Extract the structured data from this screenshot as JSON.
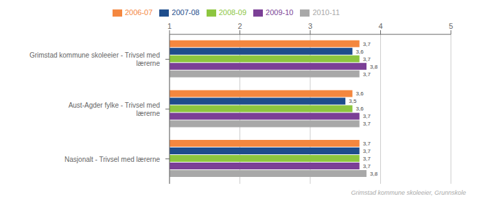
{
  "chart_data": {
    "type": "bar",
    "orientation": "horizontal",
    "categories": [
      "Grimstad kommune skoleeier - Trivsel med\nlærerne",
      "Aust-Agder fylke - Trivsel med\nlærerne",
      "Nasjonalt - Trivsel med lærerne"
    ],
    "series": [
      {
        "name": "2006-07",
        "color": "#f4873f",
        "values": [
          3.7,
          3.6,
          3.7
        ],
        "value_labels": [
          "3,7",
          "3,6",
          "3,7"
        ]
      },
      {
        "name": "2007-08",
        "color": "#1e4d8c",
        "values": [
          3.6,
          3.5,
          3.7
        ],
        "value_labels": [
          "3,6",
          "3,5",
          "3,7"
        ]
      },
      {
        "name": "2008-09",
        "color": "#8dc63f",
        "values": [
          3.7,
          3.6,
          3.7
        ],
        "value_labels": [
          "3,7",
          "3,6",
          "3,7"
        ]
      },
      {
        "name": "2009-10",
        "color": "#7b3f96",
        "values": [
          3.8,
          3.7,
          3.7
        ],
        "value_labels": [
          "3,8",
          "3,7",
          "3,7"
        ]
      },
      {
        "name": "2010-11",
        "color": "#a8a8a8",
        "values": [
          3.7,
          3.7,
          3.8
        ],
        "value_labels": [
          "3,7",
          "3,7",
          "3,8"
        ]
      }
    ],
    "xlim": [
      1,
      5
    ],
    "xticks": [
      1,
      2,
      3,
      4,
      5
    ],
    "grid": true,
    "data_labels": true,
    "legend": "top",
    "annotations": [
      "Grimstad kommune skoleeier, Grunnskole"
    ]
  }
}
